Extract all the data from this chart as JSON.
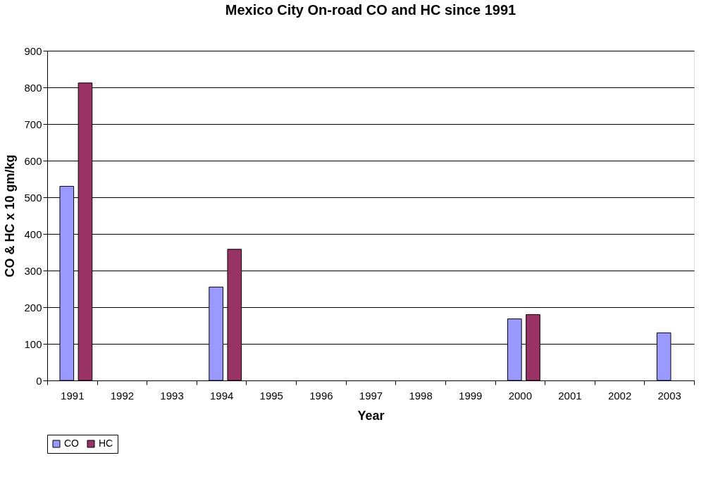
{
  "chart_data": {
    "type": "bar",
    "title": "Mexico City On-road CO and HC since 1991",
    "xlabel": "Year",
    "ylabel": "CO & HC x 10 gm/kg",
    "categories": [
      "1991",
      "1992",
      "1993",
      "1994",
      "1995",
      "1996",
      "1997",
      "1998",
      "1999",
      "2000",
      "2001",
      "2002",
      "2003"
    ],
    "series": [
      {
        "name": "CO",
        "color": "#9999ff",
        "values": [
          530,
          null,
          null,
          255,
          null,
          null,
          null,
          null,
          null,
          168,
          null,
          null,
          130
        ]
      },
      {
        "name": "HC",
        "color": "#993366",
        "values": [
          812,
          null,
          null,
          358,
          null,
          null,
          null,
          null,
          null,
          180,
          null,
          null,
          null
        ]
      }
    ],
    "ylim": [
      0,
      900
    ],
    "yticks": [
      0,
      100,
      200,
      300,
      400,
      500,
      600,
      700,
      800,
      900
    ],
    "grid": "y",
    "legend": "bottom"
  }
}
